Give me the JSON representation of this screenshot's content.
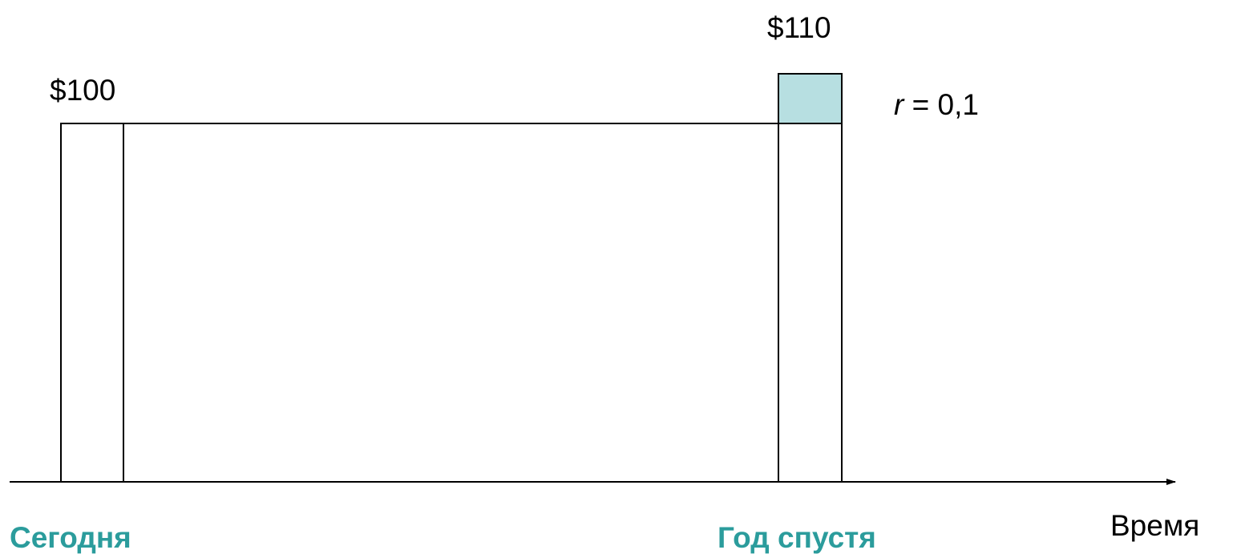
{
  "amounts": {
    "today": "$100",
    "future": "$110"
  },
  "rate": {
    "variable": "r",
    "rest": " = 0,1"
  },
  "timeline": {
    "start": "Сегодня",
    "end": "Год спустя",
    "axis": "Время"
  }
}
